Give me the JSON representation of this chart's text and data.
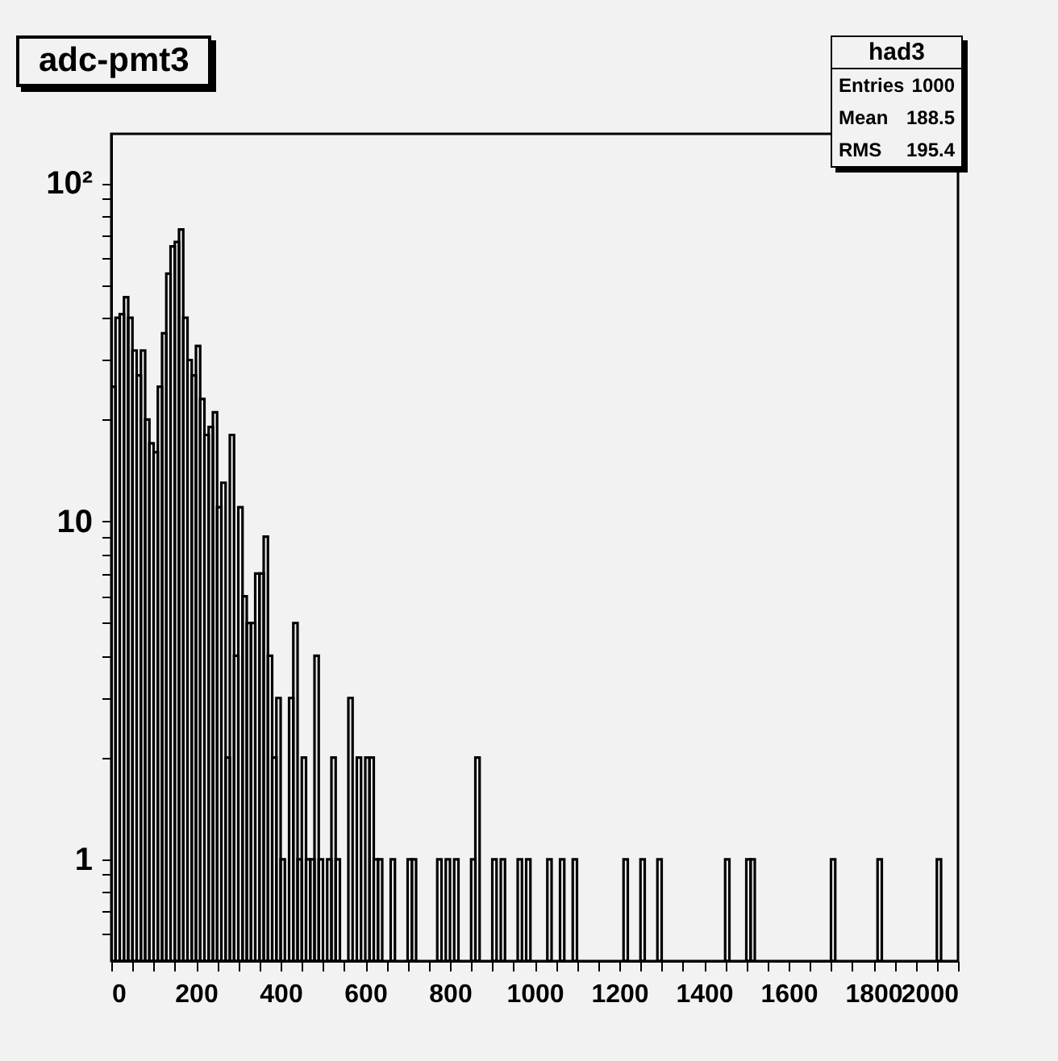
{
  "chart_data": {
    "type": "histogram",
    "title": "adc-pmt3",
    "bins": [
      0,
      10,
      20,
      30,
      40,
      50,
      60,
      70,
      80,
      90,
      100,
      110,
      120,
      130,
      140,
      150,
      160,
      170,
      180,
      190,
      200,
      210,
      220,
      230,
      240,
      250,
      260,
      270,
      280,
      290,
      300,
      310,
      320,
      330,
      340,
      350,
      360,
      370,
      380,
      390,
      400,
      410,
      420,
      430,
      440,
      450,
      460,
      470,
      480,
      490,
      500,
      510,
      520,
      530,
      540,
      550,
      560,
      570,
      580,
      590,
      600,
      610,
      620,
      630,
      640,
      650,
      660,
      670,
      680,
      690,
      700,
      710,
      720,
      730,
      740,
      750,
      760,
      770,
      780,
      790,
      800,
      810,
      820,
      830,
      840,
      850,
      860,
      870,
      880,
      890,
      900,
      910,
      920,
      930,
      940,
      950,
      960,
      970,
      980,
      990,
      1000,
      1010,
      1020,
      1030,
      1040,
      1050,
      1060,
      1070,
      1080,
      1090,
      1100,
      1110,
      1120,
      1130,
      1140,
      1150,
      1160,
      1170,
      1180,
      1190,
      1200,
      1210,
      1220,
      1230,
      1240,
      1250,
      1260,
      1270,
      1280,
      1290,
      1300,
      1310,
      1320,
      1330,
      1340,
      1350,
      1360,
      1370,
      1380,
      1390,
      1400,
      1410,
      1420,
      1430,
      1440,
      1450,
      1460,
      1470,
      1480,
      1490,
      1500,
      1510,
      1520,
      1530,
      1540,
      1550,
      1560,
      1570,
      1580,
      1590,
      1600,
      1610,
      1620,
      1630,
      1640,
      1650,
      1660,
      1670,
      1680,
      1690,
      1700,
      1710,
      1720,
      1730,
      1740,
      1750,
      1760,
      1770,
      1780,
      1790,
      1800,
      1810,
      1820,
      1830,
      1840,
      1850,
      1860,
      1870,
      1880,
      1890,
      1900,
      1910,
      1920,
      1930,
      1940,
      1950,
      1960,
      1970,
      1980,
      1990,
      2000
    ],
    "values": [
      25,
      40,
      41,
      46,
      40,
      32,
      27,
      32,
      20,
      17,
      16,
      25,
      36,
      54,
      65,
      67,
      73,
      40,
      30,
      27,
      33,
      23,
      18,
      19,
      21,
      11,
      13,
      2,
      18,
      4,
      11,
      6,
      5,
      5,
      7,
      7,
      9,
      4,
      2,
      3,
      1,
      null,
      3,
      5,
      1,
      2,
      1,
      1,
      4,
      1,
      null,
      1,
      2,
      1,
      null,
      null,
      3,
      null,
      2,
      null,
      2,
      2,
      1,
      1,
      null,
      null,
      1,
      null,
      null,
      null,
      1,
      1,
      null,
      null,
      null,
      null,
      null,
      1,
      null,
      1,
      null,
      1,
      null,
      null,
      null,
      1,
      2,
      null,
      null,
      null,
      1,
      null,
      1,
      null,
      null,
      null,
      1,
      null,
      1,
      null,
      null,
      null,
      null,
      1,
      null,
      null,
      1,
      null,
      null,
      1,
      null,
      null,
      null,
      null,
      null,
      null,
      null,
      null,
      null,
      null,
      null,
      1,
      null,
      null,
      null,
      1,
      null,
      null,
      null,
      1,
      null,
      null,
      null,
      null,
      null,
      null,
      null,
      null,
      null,
      null,
      null,
      null,
      null,
      null,
      null,
      1,
      null,
      null,
      null,
      null,
      1,
      1,
      null,
      null,
      null,
      null,
      null,
      null,
      null,
      null,
      null,
      null,
      null,
      null,
      null,
      null,
      null,
      null,
      null,
      null,
      1,
      null,
      null,
      null,
      null,
      null,
      null,
      null,
      null,
      null,
      null,
      1,
      null,
      null,
      null,
      null,
      null,
      null,
      null,
      null,
      null,
      null,
      null,
      null,
      null,
      1,
      null,
      null,
      null,
      null
    ],
    "color": "#000000",
    "xlim": [
      0,
      2000
    ],
    "xticks": [
      0,
      {
        "value": 50,
        "label": null
      },
      {
        "value": 100,
        "label": null
      },
      {
        "value": 150,
        "label": null
      },
      200,
      {
        "value": 250,
        "label": null
      },
      {
        "value": 300,
        "label": null
      },
      {
        "value": 350,
        "label": null
      },
      400,
      {
        "value": 450,
        "label": null
      },
      {
        "value": 500,
        "label": null
      },
      {
        "value": 550,
        "label": null
      },
      600,
      {
        "value": 650,
        "label": null
      },
      {
        "value": 700,
        "label": null
      },
      {
        "value": 750,
        "label": null
      },
      800,
      {
        "value": 850,
        "label": null
      },
      {
        "value": 900,
        "label": null
      },
      {
        "value": 950,
        "label": null
      },
      1000,
      {
        "value": 1050,
        "label": null
      },
      {
        "value": 1100,
        "label": null
      },
      {
        "value": 1150,
        "label": null
      },
      1200,
      {
        "value": 1250,
        "label": null
      },
      {
        "value": 1300,
        "label": null
      },
      {
        "value": 1350,
        "label": null
      },
      1400,
      {
        "value": 1450,
        "label": null
      },
      {
        "value": 1500,
        "label": null
      },
      {
        "value": 1550,
        "label": null
      },
      1600,
      {
        "value": 1650,
        "label": null
      },
      {
        "value": 1700,
        "label": null
      },
      {
        "value": 1750,
        "label": null
      },
      1800,
      {
        "value": 1850,
        "label": null
      },
      {
        "value": 1900,
        "label": null
      },
      {
        "value": 1950,
        "label": null
      },
      2000
    ],
    "ylim": [
      0.5,
      140
    ],
    "yticks": [
      {
        "value": 0.6,
        "label": null
      },
      {
        "value": 0.7,
        "label": null
      },
      {
        "value": 0.8,
        "label": null
      },
      {
        "value": 0.9,
        "label": null
      },
      1,
      {
        "value": 2,
        "label": null
      },
      {
        "value": 3,
        "label": null
      },
      {
        "value": 4,
        "label": null
      },
      {
        "value": 5,
        "label": null
      },
      {
        "value": 6,
        "label": null
      },
      {
        "value": 7,
        "label": null
      },
      {
        "value": 8,
        "label": null
      },
      {
        "value": 9,
        "label": null
      },
      10,
      {
        "value": 20,
        "label": null
      },
      {
        "value": 30,
        "label": null
      },
      {
        "value": 40,
        "label": null
      },
      {
        "value": 50,
        "label": null
      },
      {
        "value": 60,
        "label": null
      },
      {
        "value": 70,
        "label": null
      },
      {
        "value": 80,
        "label": null
      },
      {
        "value": 90,
        "label": null
      },
      {
        "value": 100,
        "label": "10²"
      }
    ],
    "log": true,
    "annotations": [
      "had3",
      "Entries 1000",
      "Mean 188.5",
      "RMS 195.4"
    ]
  }
}
